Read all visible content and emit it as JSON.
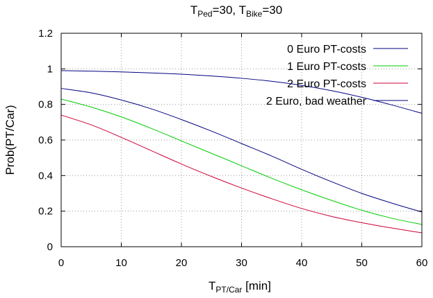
{
  "chart_data": {
    "type": "line",
    "title": {
      "t1": "T",
      "s1": "Ped",
      "m": "=30, T",
      "s2": "Bike",
      "e": "=30"
    },
    "xlabel": {
      "main": "T",
      "sub": "PT/Car",
      "rest": " [min]"
    },
    "ylabel": "Prob(PT/Car)",
    "xlim": [
      0,
      60
    ],
    "ylim": [
      0,
      1.2
    ],
    "x_ticks": [
      "0",
      "10",
      "20",
      "30",
      "40",
      "50",
      "60"
    ],
    "y_ticks": [
      "0",
      "0.2",
      "0.4",
      "0.6",
      "0.8",
      "1",
      "1.2"
    ],
    "grid": true,
    "legend_position": "top-right",
    "x": [
      0,
      5,
      10,
      15,
      20,
      25,
      30,
      35,
      40,
      45,
      50,
      55,
      60
    ],
    "series": [
      {
        "name": "0 Euro PT-costs",
        "color": "#000080",
        "values": [
          0.89,
          0.865,
          0.825,
          0.775,
          0.715,
          0.65,
          0.58,
          0.51,
          0.435,
          0.365,
          0.3,
          0.245,
          0.195
        ]
      },
      {
        "name": "1 Euro PT-costs",
        "color": "#00cc00",
        "values": [
          0.83,
          0.785,
          0.73,
          0.665,
          0.595,
          0.525,
          0.455,
          0.385,
          0.32,
          0.26,
          0.205,
          0.16,
          0.125
        ]
      },
      {
        "name": "2 Euro PT-costs",
        "color": "#cc0033",
        "values": [
          0.74,
          0.685,
          0.615,
          0.54,
          0.465,
          0.395,
          0.33,
          0.27,
          0.215,
          0.17,
          0.135,
          0.105,
          0.078
        ]
      },
      {
        "name": "2 Euro, bad weather",
        "color": "#000080",
        "values": [
          0.99,
          0.987,
          0.983,
          0.977,
          0.97,
          0.96,
          0.947,
          0.93,
          0.907,
          0.877,
          0.84,
          0.797,
          0.75
        ]
      }
    ]
  }
}
